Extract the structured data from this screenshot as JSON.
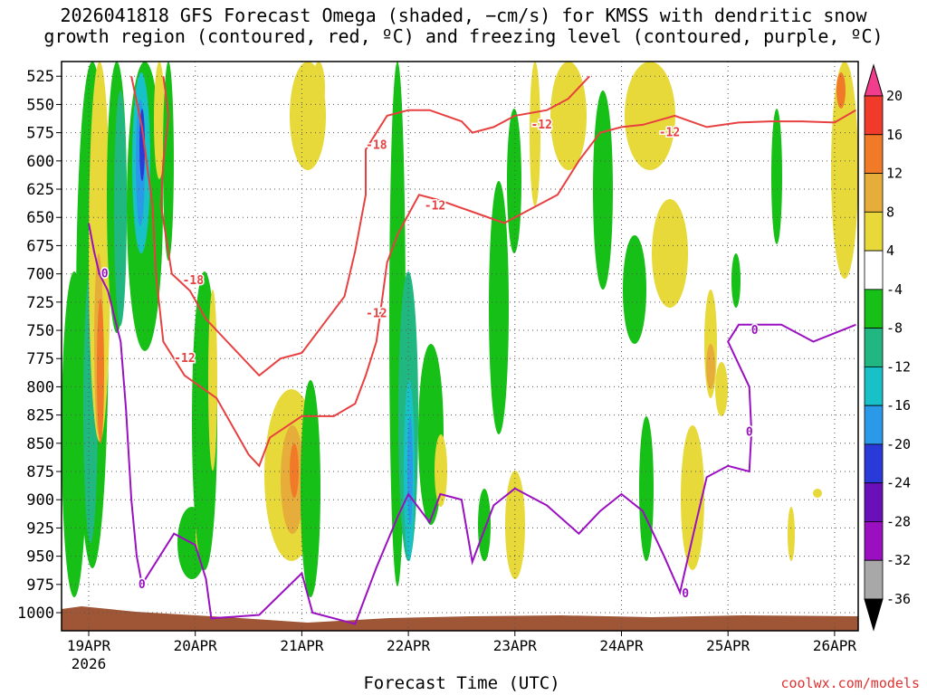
{
  "title_line1": "2026041818 GFS Forecast Omega (shaded, −cm/s) for KMSS with dendritic snow",
  "title_line2": "growth region (contoured, red, ºC) and freezing level (contoured, purple, ºC)",
  "xlabel": "Forecast Time (UTC)",
  "credit": "coolwx.com/models",
  "chart_data": {
    "type": "heatmap",
    "title": "2026041818 GFS Forecast Omega (shaded, −cm/s) for KMSS with dendritic snow growth region (contoured, red, ºC) and freezing level (contoured, purple, ºC)",
    "xlabel": "Forecast Time (UTC)",
    "ylabel": "",
    "x_ticks": [
      "19APR",
      "20APR",
      "21APR",
      "22APR",
      "23APR",
      "24APR",
      "25APR",
      "26APR"
    ],
    "x_year_label": "2026",
    "y_ticks": [
      525,
      550,
      575,
      600,
      625,
      650,
      675,
      700,
      725,
      750,
      775,
      800,
      825,
      850,
      875,
      900,
      925,
      950,
      975,
      1000
    ],
    "ylim": [
      1016,
      512
    ],
    "colorbar": {
      "ticks": [
        20,
        16,
        12,
        8,
        4,
        -4,
        -8,
        -12,
        -16,
        -20,
        -24,
        -28,
        -32,
        -36
      ],
      "colors": [
        "#f23d8c",
        "#f03a2a",
        "#f07a28",
        "#e6ad3a",
        "#e8d93a",
        "#ffffff",
        "#16c016",
        "#20b880",
        "#18c0c8",
        "#2a9ae8",
        "#2a3ad8",
        "#6a10b8",
        "#9a10c0",
        "#a8a8a8",
        "#000000"
      ]
    },
    "series": [
      {
        "name": "-18",
        "color": "#e84040",
        "label_points": [
          [
            0.98,
            706
          ],
          [
            2.7,
            586
          ]
        ],
        "points": [
          [
            0.7,
            525
          ],
          [
            0.75,
            560
          ],
          [
            0.7,
            600
          ],
          [
            0.68,
            640
          ],
          [
            0.78,
            700
          ],
          [
            0.95,
            715
          ],
          [
            1.1,
            740
          ],
          [
            1.3,
            760
          ],
          [
            1.6,
            790
          ],
          [
            1.8,
            775
          ],
          [
            2.0,
            770
          ],
          [
            2.2,
            745
          ],
          [
            2.4,
            720
          ],
          [
            2.5,
            680
          ],
          [
            2.6,
            630
          ],
          [
            2.6,
            590
          ],
          [
            2.8,
            560
          ],
          [
            3.0,
            555
          ],
          [
            3.2,
            555
          ],
          [
            3.5,
            565
          ],
          [
            3.6,
            575
          ],
          [
            3.8,
            570
          ],
          [
            4.0,
            560
          ],
          [
            4.3,
            555
          ],
          [
            4.5,
            545
          ],
          [
            4.7,
            525
          ]
        ]
      },
      {
        "name": "-12",
        "color": "#e84040",
        "label_points": [
          [
            0.9,
            775
          ],
          [
            2.7,
            735
          ],
          [
            3.25,
            640
          ],
          [
            4.25,
            568
          ],
          [
            5.45,
            575
          ]
        ],
        "points": [
          [
            0.4,
            525
          ],
          [
            0.5,
            570
          ],
          [
            0.6,
            640
          ],
          [
            0.63,
            700
          ],
          [
            0.7,
            760
          ],
          [
            0.9,
            790
          ],
          [
            1.2,
            810
          ],
          [
            1.5,
            860
          ],
          [
            1.6,
            870
          ],
          [
            1.7,
            845
          ],
          [
            2.0,
            826
          ],
          [
            2.3,
            826
          ],
          [
            2.5,
            815
          ],
          [
            2.6,
            790
          ],
          [
            2.7,
            760
          ],
          [
            2.8,
            690
          ],
          [
            2.9,
            665
          ],
          [
            3.1,
            630
          ],
          [
            3.3,
            635
          ],
          [
            3.6,
            645
          ],
          [
            3.9,
            655
          ],
          [
            4.2,
            640
          ],
          [
            4.4,
            630
          ],
          [
            4.6,
            600
          ],
          [
            4.8,
            575
          ],
          [
            5.0,
            570
          ],
          [
            5.2,
            568
          ],
          [
            5.5,
            560
          ],
          [
            5.8,
            570
          ],
          [
            6.1,
            566
          ],
          [
            6.4,
            565
          ],
          [
            6.7,
            565
          ],
          [
            7.0,
            566
          ],
          [
            7.2,
            555
          ]
        ]
      },
      {
        "name": "0",
        "color": "#9a10c0",
        "label_points": [
          [
            0.15,
            700
          ],
          [
            0.5,
            975
          ],
          [
            6.25,
            750
          ],
          [
            6.2,
            840
          ],
          [
            5.6,
            983
          ]
        ],
        "points": [
          [
            0.0,
            655
          ],
          [
            0.05,
            680
          ],
          [
            0.1,
            700
          ],
          [
            0.18,
            715
          ],
          [
            0.3,
            760
          ],
          [
            0.35,
            820
          ],
          [
            0.4,
            900
          ],
          [
            0.45,
            950
          ],
          [
            0.5,
            975
          ],
          [
            0.8,
            930
          ],
          [
            1.0,
            940
          ],
          [
            1.1,
            970
          ],
          [
            1.15,
            1005
          ],
          [
            1.6,
            1002
          ],
          [
            2.0,
            965
          ],
          [
            2.1,
            1000
          ],
          [
            2.5,
            1010
          ],
          [
            2.7,
            960
          ],
          [
            2.9,
            915
          ],
          [
            3.0,
            895
          ],
          [
            3.2,
            920
          ],
          [
            3.3,
            895
          ],
          [
            3.5,
            900
          ],
          [
            3.6,
            955
          ],
          [
            3.8,
            905
          ],
          [
            4.0,
            890
          ],
          [
            4.3,
            905
          ],
          [
            4.6,
            930
          ],
          [
            4.8,
            910
          ],
          [
            5.0,
            895
          ],
          [
            5.2,
            910
          ],
          [
            5.4,
            950
          ],
          [
            5.55,
            982
          ],
          [
            5.7,
            920
          ],
          [
            5.8,
            880
          ],
          [
            6.0,
            870
          ],
          [
            6.2,
            875
          ],
          [
            6.22,
            840
          ],
          [
            6.2,
            800
          ],
          [
            6.0,
            760
          ],
          [
            6.1,
            745
          ],
          [
            6.5,
            745
          ],
          [
            6.8,
            760
          ],
          [
            7.2,
            745
          ]
        ]
      }
    ]
  }
}
